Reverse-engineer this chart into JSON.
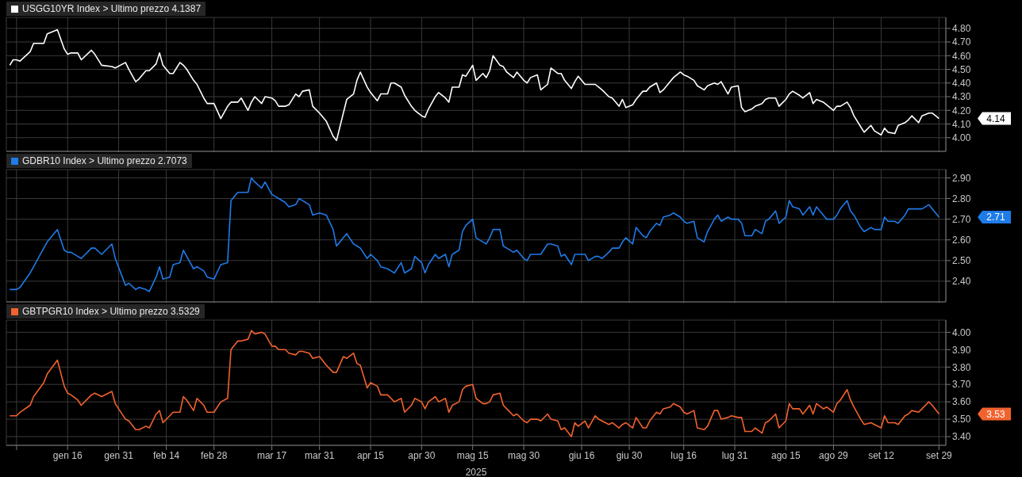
{
  "chart_data": [
    {
      "type": "line",
      "legend": "top left",
      "grid": true,
      "tick_labels": "y",
      "xlim": [
        "2024-12-29",
        "2025-10-01"
      ],
      "xticks": [
        {
          "value": "2025-01-01",
          "label": null
        },
        {
          "value": "2025-01-16",
          "label": null
        },
        {
          "value": "2025-01-31",
          "label": null
        },
        {
          "value": "2025-02-14",
          "label": null
        },
        {
          "value": "2025-02-28",
          "label": null
        },
        {
          "value": "2025-03-17",
          "label": null
        },
        {
          "value": "2025-03-31",
          "label": null
        },
        {
          "value": "2025-04-15",
          "label": null
        },
        {
          "value": "2025-04-30",
          "label": null
        },
        {
          "value": "2025-05-15",
          "label": null
        },
        {
          "value": "2025-05-30",
          "label": null
        },
        {
          "value": "2025-06-16",
          "label": null
        },
        {
          "value": "2025-06-30",
          "label": null
        },
        {
          "value": "2025-07-16",
          "label": null
        },
        {
          "value": "2025-07-31",
          "label": null
        },
        {
          "value": "2025-08-15",
          "label": null
        },
        {
          "value": "2025-08-29",
          "label": null
        },
        {
          "value": "2025-09-12",
          "label": null
        },
        {
          "value": "2025-09-29",
          "label": null
        }
      ],
      "ylim": [
        3.9,
        4.88
      ],
      "yticks": [
        {
          "value": 4.0,
          "label": "4.00"
        },
        {
          "value": 4.1,
          "label": "4.10"
        },
        {
          "value": 4.2,
          "label": "4.20"
        },
        {
          "value": 4.3,
          "label": "4.30"
        },
        {
          "value": 4.4,
          "label": "4.40"
        },
        {
          "value": 4.5,
          "label": "4.50"
        },
        {
          "value": 4.6,
          "label": "4.60"
        },
        {
          "value": 4.7,
          "label": "4.70"
        },
        {
          "value": 4.8,
          "label": "4.80"
        }
      ],
      "annotations": [
        "4.14"
      ],
      "x": [
        "2024-12-30",
        "2024-12-31",
        "2025-01-01",
        "2025-01-02",
        "2025-01-05",
        "2025-01-06",
        "2025-01-09",
        "2025-01-10",
        "2025-01-13",
        "2025-01-15",
        "2025-01-16",
        "2025-01-17",
        "2025-01-19",
        "2025-01-20",
        "2025-01-23",
        "2025-01-24",
        "2025-01-26",
        "2025-01-29",
        "2025-01-30",
        "2025-02-02",
        "2025-02-03",
        "2025-02-05",
        "2025-02-06",
        "2025-02-08",
        "2025-02-09",
        "2025-02-11",
        "2025-02-12",
        "2025-02-13",
        "2025-02-15",
        "2025-02-16",
        "2025-02-18",
        "2025-02-19",
        "2025-02-20",
        "2025-02-22",
        "2025-02-23",
        "2025-02-25",
        "2025-02-26",
        "2025-02-28",
        "2025-03-02",
        "2025-03-04",
        "2025-03-05",
        "2025-03-07",
        "2025-03-08",
        "2025-03-10",
        "2025-03-11",
        "2025-03-12",
        "2025-03-14",
        "2025-03-15",
        "2025-03-17",
        "2025-03-18",
        "2025-03-19",
        "2025-03-21",
        "2025-03-22",
        "2025-03-24",
        "2025-03-25",
        "2025-03-26",
        "2025-03-28",
        "2025-03-29",
        "2025-03-31",
        "2025-04-02",
        "2025-04-04",
        "2025-04-05",
        "2025-04-07",
        "2025-04-08",
        "2025-04-10",
        "2025-04-11",
        "2025-04-12",
        "2025-04-14",
        "2025-04-15",
        "2025-04-17",
        "2025-04-18",
        "2025-04-20",
        "2025-04-21",
        "2025-04-22",
        "2025-04-24",
        "2025-04-25",
        "2025-04-27",
        "2025-04-28",
        "2025-04-30",
        "2025-05-01",
        "2025-05-02",
        "2025-05-04",
        "2025-05-05",
        "2025-05-07",
        "2025-05-08",
        "2025-05-09",
        "2025-05-11",
        "2025-05-12",
        "2025-05-13",
        "2025-05-15",
        "2025-05-16",
        "2025-05-18",
        "2025-05-19",
        "2025-05-20",
        "2025-05-21",
        "2025-05-23",
        "2025-05-24",
        "2025-05-25",
        "2025-05-27",
        "2025-05-28",
        "2025-05-30",
        "2025-05-31",
        "2025-06-01",
        "2025-06-03",
        "2025-06-04",
        "2025-06-06",
        "2025-06-07",
        "2025-06-09",
        "2025-06-10",
        "2025-06-11",
        "2025-06-13",
        "2025-06-14",
        "2025-06-15",
        "2025-06-17",
        "2025-06-18",
        "2025-06-20",
        "2025-06-21",
        "2025-06-22",
        "2025-06-24",
        "2025-06-25",
        "2025-06-27",
        "2025-06-28",
        "2025-06-29",
        "2025-07-01",
        "2025-07-02",
        "2025-07-04",
        "2025-07-05",
        "2025-07-06",
        "2025-07-08",
        "2025-07-09",
        "2025-07-10",
        "2025-07-12",
        "2025-07-13",
        "2025-07-15",
        "2025-07-16",
        "2025-07-17",
        "2025-07-19",
        "2025-07-20",
        "2025-07-22",
        "2025-07-23",
        "2025-07-25",
        "2025-07-26",
        "2025-07-27",
        "2025-07-29",
        "2025-07-30",
        "2025-08-01",
        "2025-08-02",
        "2025-08-03",
        "2025-08-05",
        "2025-08-06",
        "2025-08-08",
        "2025-08-09",
        "2025-08-10",
        "2025-08-12",
        "2025-08-13",
        "2025-08-15",
        "2025-08-16",
        "2025-08-17",
        "2025-08-19",
        "2025-08-20",
        "2025-08-22",
        "2025-08-23",
        "2025-08-24",
        "2025-08-26",
        "2025-08-27",
        "2025-08-29",
        "2025-08-30",
        "2025-08-31",
        "2025-09-02",
        "2025-09-03",
        "2025-09-04",
        "2025-09-06",
        "2025-09-07",
        "2025-09-09",
        "2025-09-10",
        "2025-09-12",
        "2025-09-13",
        "2025-09-14",
        "2025-09-16",
        "2025-09-17",
        "2025-09-19",
        "2025-09-20",
        "2025-09-21",
        "2025-09-23",
        "2025-09-24",
        "2025-09-26",
        "2025-09-27",
        "2025-09-29"
      ],
      "series": [
        {
          "name": "USGG10YR Index > Ultimo prezzo 4.1387",
          "color": "#ffffff",
          "values": [
            4.53,
            4.57,
            4.57,
            4.56,
            4.63,
            4.69,
            4.69,
            4.76,
            4.79,
            4.65,
            4.61,
            4.62,
            4.62,
            4.57,
            4.64,
            4.61,
            4.53,
            4.52,
            4.51,
            4.55,
            4.5,
            4.41,
            4.43,
            4.49,
            4.49,
            4.54,
            4.62,
            4.53,
            4.47,
            4.47,
            4.55,
            4.53,
            4.5,
            4.42,
            4.39,
            4.29,
            4.25,
            4.25,
            4.14,
            4.23,
            4.26,
            4.26,
            4.29,
            4.2,
            4.26,
            4.3,
            4.25,
            4.3,
            4.29,
            4.27,
            4.23,
            4.23,
            4.24,
            4.32,
            4.3,
            4.34,
            4.35,
            4.23,
            4.18,
            4.12,
            4.01,
            3.98,
            4.18,
            4.28,
            4.32,
            4.42,
            4.48,
            4.37,
            4.33,
            4.27,
            4.32,
            4.32,
            4.4,
            4.4,
            4.37,
            4.31,
            4.23,
            4.2,
            4.16,
            4.15,
            4.21,
            4.3,
            4.33,
            4.29,
            4.26,
            4.37,
            4.37,
            4.46,
            4.45,
            4.53,
            4.42,
            4.47,
            4.44,
            4.49,
            4.6,
            4.53,
            4.52,
            4.48,
            4.44,
            4.48,
            4.42,
            4.4,
            4.44,
            4.46,
            4.35,
            4.39,
            4.51,
            4.47,
            4.47,
            4.42,
            4.36,
            4.41,
            4.45,
            4.39,
            4.39,
            4.39,
            4.37,
            4.35,
            4.3,
            4.29,
            4.23,
            4.28,
            4.22,
            4.24,
            4.28,
            4.34,
            4.34,
            4.37,
            4.4,
            4.33,
            4.35,
            4.41,
            4.44,
            4.48,
            4.46,
            4.45,
            4.42,
            4.38,
            4.35,
            4.38,
            4.4,
            4.39,
            4.41,
            4.32,
            4.37,
            4.38,
            4.22,
            4.19,
            4.21,
            4.23,
            4.25,
            4.28,
            4.29,
            4.29,
            4.23,
            4.28,
            4.32,
            4.34,
            4.31,
            4.29,
            4.33,
            4.25,
            4.28,
            4.26,
            4.24,
            4.2,
            4.23,
            4.23,
            4.26,
            4.22,
            4.16,
            4.08,
            4.04,
            4.09,
            4.05,
            4.02,
            4.07,
            4.04,
            4.03,
            4.09,
            4.11,
            4.13,
            4.16,
            4.11,
            4.16,
            4.18,
            4.18,
            4.14
          ]
        }
      ]
    },
    {
      "type": "line",
      "legend": "top left",
      "grid": true,
      "tick_labels": "y",
      "xlim": [
        "2024-12-29",
        "2025-10-01"
      ],
      "xticks": [
        {
          "value": "2025-01-01",
          "label": null
        },
        {
          "value": "2025-01-16",
          "label": null
        },
        {
          "value": "2025-01-31",
          "label": null
        },
        {
          "value": "2025-02-14",
          "label": null
        },
        {
          "value": "2025-02-28",
          "label": null
        },
        {
          "value": "2025-03-17",
          "label": null
        },
        {
          "value": "2025-03-31",
          "label": null
        },
        {
          "value": "2025-04-15",
          "label": null
        },
        {
          "value": "2025-04-30",
          "label": null
        },
        {
          "value": "2025-05-15",
          "label": null
        },
        {
          "value": "2025-05-30",
          "label": null
        },
        {
          "value": "2025-06-16",
          "label": null
        },
        {
          "value": "2025-06-30",
          "label": null
        },
        {
          "value": "2025-07-16",
          "label": null
        },
        {
          "value": "2025-07-31",
          "label": null
        },
        {
          "value": "2025-08-15",
          "label": null
        },
        {
          "value": "2025-08-29",
          "label": null
        },
        {
          "value": "2025-09-12",
          "label": null
        },
        {
          "value": "2025-09-29",
          "label": null
        }
      ],
      "ylim": [
        2.3,
        2.94
      ],
      "yticks": [
        {
          "value": 2.4,
          "label": "2.40"
        },
        {
          "value": 2.5,
          "label": "2.50"
        },
        {
          "value": 2.6,
          "label": "2.60"
        },
        {
          "value": 2.7,
          "label": "2.70"
        },
        {
          "value": 2.8,
          "label": "2.80"
        },
        {
          "value": 2.9,
          "label": "2.90"
        }
      ],
      "annotations": [
        "2.71"
      ],
      "x": [
        "2024-12-30",
        "2024-12-31",
        "2025-01-01",
        "2025-01-02",
        "2025-01-05",
        "2025-01-06",
        "2025-01-09",
        "2025-01-10",
        "2025-01-13",
        "2025-01-15",
        "2025-01-16",
        "2025-01-17",
        "2025-01-19",
        "2025-01-20",
        "2025-01-23",
        "2025-01-24",
        "2025-01-26",
        "2025-01-29",
        "2025-01-30",
        "2025-02-02",
        "2025-02-03",
        "2025-02-05",
        "2025-02-06",
        "2025-02-08",
        "2025-02-09",
        "2025-02-11",
        "2025-02-12",
        "2025-02-13",
        "2025-02-15",
        "2025-02-16",
        "2025-02-18",
        "2025-02-19",
        "2025-02-20",
        "2025-02-22",
        "2025-02-23",
        "2025-02-25",
        "2025-02-26",
        "2025-02-28",
        "2025-03-02",
        "2025-03-04",
        "2025-03-05",
        "2025-03-07",
        "2025-03-08",
        "2025-03-10",
        "2025-03-11",
        "2025-03-12",
        "2025-03-14",
        "2025-03-15",
        "2025-03-17",
        "2025-03-18",
        "2025-03-19",
        "2025-03-21",
        "2025-03-22",
        "2025-03-24",
        "2025-03-25",
        "2025-03-26",
        "2025-03-28",
        "2025-03-29",
        "2025-03-31",
        "2025-04-02",
        "2025-04-04",
        "2025-04-05",
        "2025-04-07",
        "2025-04-08",
        "2025-04-10",
        "2025-04-11",
        "2025-04-12",
        "2025-04-14",
        "2025-04-15",
        "2025-04-17",
        "2025-04-18",
        "2025-04-20",
        "2025-04-21",
        "2025-04-22",
        "2025-04-24",
        "2025-04-25",
        "2025-04-27",
        "2025-04-28",
        "2025-04-30",
        "2025-05-01",
        "2025-05-02",
        "2025-05-04",
        "2025-05-05",
        "2025-05-07",
        "2025-05-08",
        "2025-05-09",
        "2025-05-11",
        "2025-05-12",
        "2025-05-13",
        "2025-05-15",
        "2025-05-16",
        "2025-05-18",
        "2025-05-19",
        "2025-05-20",
        "2025-05-21",
        "2025-05-23",
        "2025-05-24",
        "2025-05-25",
        "2025-05-27",
        "2025-05-28",
        "2025-05-30",
        "2025-05-31",
        "2025-06-01",
        "2025-06-03",
        "2025-06-04",
        "2025-06-06",
        "2025-06-07",
        "2025-06-09",
        "2025-06-10",
        "2025-06-11",
        "2025-06-13",
        "2025-06-14",
        "2025-06-15",
        "2025-06-17",
        "2025-06-18",
        "2025-06-20",
        "2025-06-21",
        "2025-06-22",
        "2025-06-24",
        "2025-06-25",
        "2025-06-27",
        "2025-06-28",
        "2025-06-29",
        "2025-07-01",
        "2025-07-02",
        "2025-07-04",
        "2025-07-05",
        "2025-07-06",
        "2025-07-08",
        "2025-07-09",
        "2025-07-10",
        "2025-07-12",
        "2025-07-13",
        "2025-07-15",
        "2025-07-16",
        "2025-07-17",
        "2025-07-19",
        "2025-07-20",
        "2025-07-22",
        "2025-07-23",
        "2025-07-25",
        "2025-07-26",
        "2025-07-27",
        "2025-07-29",
        "2025-07-30",
        "2025-08-01",
        "2025-08-02",
        "2025-08-03",
        "2025-08-05",
        "2025-08-06",
        "2025-08-08",
        "2025-08-09",
        "2025-08-10",
        "2025-08-12",
        "2025-08-13",
        "2025-08-15",
        "2025-08-16",
        "2025-08-17",
        "2025-08-19",
        "2025-08-20",
        "2025-08-22",
        "2025-08-23",
        "2025-08-24",
        "2025-08-26",
        "2025-08-27",
        "2025-08-29",
        "2025-08-30",
        "2025-08-31",
        "2025-09-02",
        "2025-09-03",
        "2025-09-04",
        "2025-09-06",
        "2025-09-07",
        "2025-09-09",
        "2025-09-10",
        "2025-09-12",
        "2025-09-13",
        "2025-09-14",
        "2025-09-16",
        "2025-09-17",
        "2025-09-19",
        "2025-09-20",
        "2025-09-21",
        "2025-09-23",
        "2025-09-24",
        "2025-09-26",
        "2025-09-27",
        "2025-09-29"
      ],
      "series": [
        {
          "name": "GDBR10 Index > Ultimo prezzo 2.7073",
          "color": "#1f7be8",
          "values": [
            2.36,
            2.36,
            2.36,
            2.37,
            2.44,
            2.47,
            2.56,
            2.59,
            2.65,
            2.55,
            2.54,
            2.54,
            2.52,
            2.51,
            2.56,
            2.56,
            2.53,
            2.58,
            2.51,
            2.38,
            2.39,
            2.36,
            2.37,
            2.36,
            2.35,
            2.42,
            2.47,
            2.41,
            2.42,
            2.48,
            2.49,
            2.55,
            2.52,
            2.46,
            2.47,
            2.45,
            2.42,
            2.41,
            2.48,
            2.49,
            2.79,
            2.83,
            2.83,
            2.83,
            2.9,
            2.88,
            2.85,
            2.88,
            2.82,
            2.81,
            2.8,
            2.78,
            2.76,
            2.77,
            2.8,
            2.79,
            2.77,
            2.72,
            2.73,
            2.72,
            2.65,
            2.57,
            2.61,
            2.63,
            2.58,
            2.57,
            2.56,
            2.51,
            2.53,
            2.5,
            2.47,
            2.46,
            2.45,
            2.44,
            2.49,
            2.44,
            2.46,
            2.52,
            2.49,
            2.44,
            2.48,
            2.53,
            2.51,
            2.53,
            2.47,
            2.53,
            2.55,
            2.64,
            2.67,
            2.7,
            2.61,
            2.59,
            2.58,
            2.61,
            2.65,
            2.65,
            2.57,
            2.56,
            2.54,
            2.55,
            2.51,
            2.5,
            2.53,
            2.53,
            2.53,
            2.58,
            2.58,
            2.57,
            2.52,
            2.53,
            2.48,
            2.53,
            2.53,
            2.53,
            2.5,
            2.52,
            2.52,
            2.51,
            2.54,
            2.56,
            2.56,
            2.59,
            2.61,
            2.58,
            2.66,
            2.62,
            2.61,
            2.64,
            2.68,
            2.67,
            2.71,
            2.72,
            2.73,
            2.71,
            2.69,
            2.68,
            2.69,
            2.61,
            2.59,
            2.64,
            2.7,
            2.72,
            2.69,
            2.71,
            2.7,
            2.7,
            2.68,
            2.62,
            2.62,
            2.65,
            2.63,
            2.69,
            2.7,
            2.74,
            2.68,
            2.71,
            2.79,
            2.76,
            2.75,
            2.72,
            2.76,
            2.72,
            2.76,
            2.72,
            2.7,
            2.7,
            2.72,
            2.75,
            2.79,
            2.74,
            2.72,
            2.66,
            2.64,
            2.66,
            2.65,
            2.65,
            2.71,
            2.69,
            2.69,
            2.68,
            2.72,
            2.75,
            2.75,
            2.75,
            2.75,
            2.77,
            2.75,
            2.71
          ]
        }
      ]
    },
    {
      "type": "line",
      "legend": "top left",
      "grid": true,
      "xlabel": "2025",
      "xlim": [
        "2024-12-29",
        "2025-10-01"
      ],
      "xticks": [
        {
          "value": "2025-01-01",
          "label": null
        },
        {
          "value": "2025-01-16",
          "label": "gen 16"
        },
        {
          "value": "2025-01-31",
          "label": "gen 31"
        },
        {
          "value": "2025-02-14",
          "label": "feb 14"
        },
        {
          "value": "2025-02-28",
          "label": "feb 28"
        },
        {
          "value": "2025-03-17",
          "label": "mar 17"
        },
        {
          "value": "2025-03-31",
          "label": "mar 31"
        },
        {
          "value": "2025-04-15",
          "label": "apr 15"
        },
        {
          "value": "2025-04-30",
          "label": "apr 30"
        },
        {
          "value": "2025-05-15",
          "label": "mag 15"
        },
        {
          "value": "2025-05-30",
          "label": "mag 30"
        },
        {
          "value": "2025-06-16",
          "label": "giu 16"
        },
        {
          "value": "2025-06-30",
          "label": "giu 30"
        },
        {
          "value": "2025-07-16",
          "label": "lug 16"
        },
        {
          "value": "2025-07-31",
          "label": "lug 31"
        },
        {
          "value": "2025-08-15",
          "label": "ago 15"
        },
        {
          "value": "2025-08-29",
          "label": "ago 29"
        },
        {
          "value": "2025-09-12",
          "label": "set 12"
        },
        {
          "value": "2025-09-29",
          "label": "set 29"
        }
      ],
      "ylim": [
        3.35,
        4.07
      ],
      "yticks": [
        {
          "value": 3.4,
          "label": "3.40"
        },
        {
          "value": 3.5,
          "label": "3.50"
        },
        {
          "value": 3.6,
          "label": "3.60"
        },
        {
          "value": 3.7,
          "label": "3.70"
        },
        {
          "value": 3.8,
          "label": "3.80"
        },
        {
          "value": 3.9,
          "label": "3.90"
        },
        {
          "value": 4.0,
          "label": "4.00"
        }
      ],
      "annotations": [
        "3.53"
      ],
      "x": [
        "2024-12-30",
        "2024-12-31",
        "2025-01-01",
        "2025-01-02",
        "2025-01-05",
        "2025-01-06",
        "2025-01-09",
        "2025-01-10",
        "2025-01-13",
        "2025-01-15",
        "2025-01-16",
        "2025-01-17",
        "2025-01-19",
        "2025-01-20",
        "2025-01-23",
        "2025-01-24",
        "2025-01-26",
        "2025-01-29",
        "2025-01-30",
        "2025-02-02",
        "2025-02-03",
        "2025-02-05",
        "2025-02-06",
        "2025-02-08",
        "2025-02-09",
        "2025-02-11",
        "2025-02-12",
        "2025-02-13",
        "2025-02-15",
        "2025-02-16",
        "2025-02-18",
        "2025-02-19",
        "2025-02-20",
        "2025-02-22",
        "2025-02-23",
        "2025-02-25",
        "2025-02-26",
        "2025-02-28",
        "2025-03-02",
        "2025-03-04",
        "2025-03-05",
        "2025-03-07",
        "2025-03-08",
        "2025-03-10",
        "2025-03-11",
        "2025-03-12",
        "2025-03-14",
        "2025-03-15",
        "2025-03-17",
        "2025-03-18",
        "2025-03-19",
        "2025-03-21",
        "2025-03-22",
        "2025-03-24",
        "2025-03-25",
        "2025-03-26",
        "2025-03-28",
        "2025-03-29",
        "2025-03-31",
        "2025-04-02",
        "2025-04-04",
        "2025-04-05",
        "2025-04-07",
        "2025-04-08",
        "2025-04-10",
        "2025-04-11",
        "2025-04-12",
        "2025-04-14",
        "2025-04-15",
        "2025-04-17",
        "2025-04-18",
        "2025-04-20",
        "2025-04-21",
        "2025-04-22",
        "2025-04-24",
        "2025-04-25",
        "2025-04-27",
        "2025-04-28",
        "2025-04-30",
        "2025-05-01",
        "2025-05-02",
        "2025-05-04",
        "2025-05-05",
        "2025-05-07",
        "2025-05-08",
        "2025-05-09",
        "2025-05-11",
        "2025-05-12",
        "2025-05-13",
        "2025-05-15",
        "2025-05-16",
        "2025-05-18",
        "2025-05-19",
        "2025-05-20",
        "2025-05-21",
        "2025-05-23",
        "2025-05-24",
        "2025-05-25",
        "2025-05-27",
        "2025-05-28",
        "2025-05-30",
        "2025-05-31",
        "2025-06-01",
        "2025-06-03",
        "2025-06-04",
        "2025-06-06",
        "2025-06-07",
        "2025-06-09",
        "2025-06-10",
        "2025-06-11",
        "2025-06-13",
        "2025-06-14",
        "2025-06-15",
        "2025-06-17",
        "2025-06-18",
        "2025-06-20",
        "2025-06-21",
        "2025-06-22",
        "2025-06-24",
        "2025-06-25",
        "2025-06-27",
        "2025-06-28",
        "2025-06-29",
        "2025-07-01",
        "2025-07-02",
        "2025-07-04",
        "2025-07-05",
        "2025-07-06",
        "2025-07-08",
        "2025-07-09",
        "2025-07-10",
        "2025-07-12",
        "2025-07-13",
        "2025-07-15",
        "2025-07-16",
        "2025-07-17",
        "2025-07-19",
        "2025-07-20",
        "2025-07-22",
        "2025-07-23",
        "2025-07-25",
        "2025-07-26",
        "2025-07-27",
        "2025-07-29",
        "2025-07-30",
        "2025-08-01",
        "2025-08-02",
        "2025-08-03",
        "2025-08-05",
        "2025-08-06",
        "2025-08-08",
        "2025-08-09",
        "2025-08-10",
        "2025-08-12",
        "2025-08-13",
        "2025-08-15",
        "2025-08-16",
        "2025-08-17",
        "2025-08-19",
        "2025-08-20",
        "2025-08-22",
        "2025-08-23",
        "2025-08-24",
        "2025-08-26",
        "2025-08-27",
        "2025-08-29",
        "2025-08-30",
        "2025-08-31",
        "2025-09-02",
        "2025-09-03",
        "2025-09-04",
        "2025-09-06",
        "2025-09-07",
        "2025-09-09",
        "2025-09-10",
        "2025-09-12",
        "2025-09-13",
        "2025-09-14",
        "2025-09-16",
        "2025-09-17",
        "2025-09-19",
        "2025-09-20",
        "2025-09-21",
        "2025-09-23",
        "2025-09-24",
        "2025-09-26",
        "2025-09-27",
        "2025-09-29"
      ],
      "series": [
        {
          "name": "GBTPGR10 Index > Ultimo prezzo 3.5329",
          "color": "#f2622e",
          "values": [
            3.52,
            3.52,
            3.52,
            3.54,
            3.58,
            3.63,
            3.71,
            3.76,
            3.84,
            3.69,
            3.65,
            3.64,
            3.61,
            3.58,
            3.64,
            3.65,
            3.63,
            3.66,
            3.59,
            3.5,
            3.49,
            3.44,
            3.44,
            3.46,
            3.45,
            3.53,
            3.55,
            3.48,
            3.52,
            3.54,
            3.54,
            3.63,
            3.61,
            3.55,
            3.62,
            3.58,
            3.54,
            3.54,
            3.6,
            3.62,
            3.9,
            3.95,
            3.95,
            3.96,
            4.01,
            3.99,
            4.0,
            3.99,
            3.92,
            3.92,
            3.9,
            3.9,
            3.88,
            3.87,
            3.89,
            3.89,
            3.88,
            3.85,
            3.86,
            3.81,
            3.77,
            3.77,
            3.86,
            3.85,
            3.88,
            3.82,
            3.81,
            3.68,
            3.71,
            3.69,
            3.64,
            3.64,
            3.62,
            3.6,
            3.62,
            3.54,
            3.58,
            3.62,
            3.6,
            3.56,
            3.6,
            3.63,
            3.6,
            3.62,
            3.54,
            3.58,
            3.6,
            3.67,
            3.69,
            3.7,
            3.62,
            3.59,
            3.59,
            3.6,
            3.64,
            3.65,
            3.58,
            3.56,
            3.52,
            3.53,
            3.49,
            3.48,
            3.5,
            3.5,
            3.49,
            3.53,
            3.5,
            3.49,
            3.44,
            3.45,
            3.4,
            3.48,
            3.46,
            3.49,
            3.45,
            3.52,
            3.5,
            3.49,
            3.47,
            3.48,
            3.45,
            3.47,
            3.48,
            3.45,
            3.51,
            3.45,
            3.45,
            3.49,
            3.54,
            3.53,
            3.56,
            3.57,
            3.59,
            3.57,
            3.54,
            3.53,
            3.55,
            3.45,
            3.44,
            3.46,
            3.55,
            3.55,
            3.5,
            3.51,
            3.52,
            3.51,
            3.51,
            3.43,
            3.43,
            3.45,
            3.42,
            3.48,
            3.49,
            3.53,
            3.45,
            3.49,
            3.59,
            3.56,
            3.56,
            3.53,
            3.58,
            3.53,
            3.59,
            3.56,
            3.57,
            3.54,
            3.59,
            3.61,
            3.67,
            3.61,
            3.57,
            3.5,
            3.47,
            3.48,
            3.47,
            3.45,
            3.52,
            3.48,
            3.48,
            3.47,
            3.52,
            3.53,
            3.55,
            3.54,
            3.56,
            3.6,
            3.58,
            3.53
          ]
        }
      ]
    }
  ]
}
